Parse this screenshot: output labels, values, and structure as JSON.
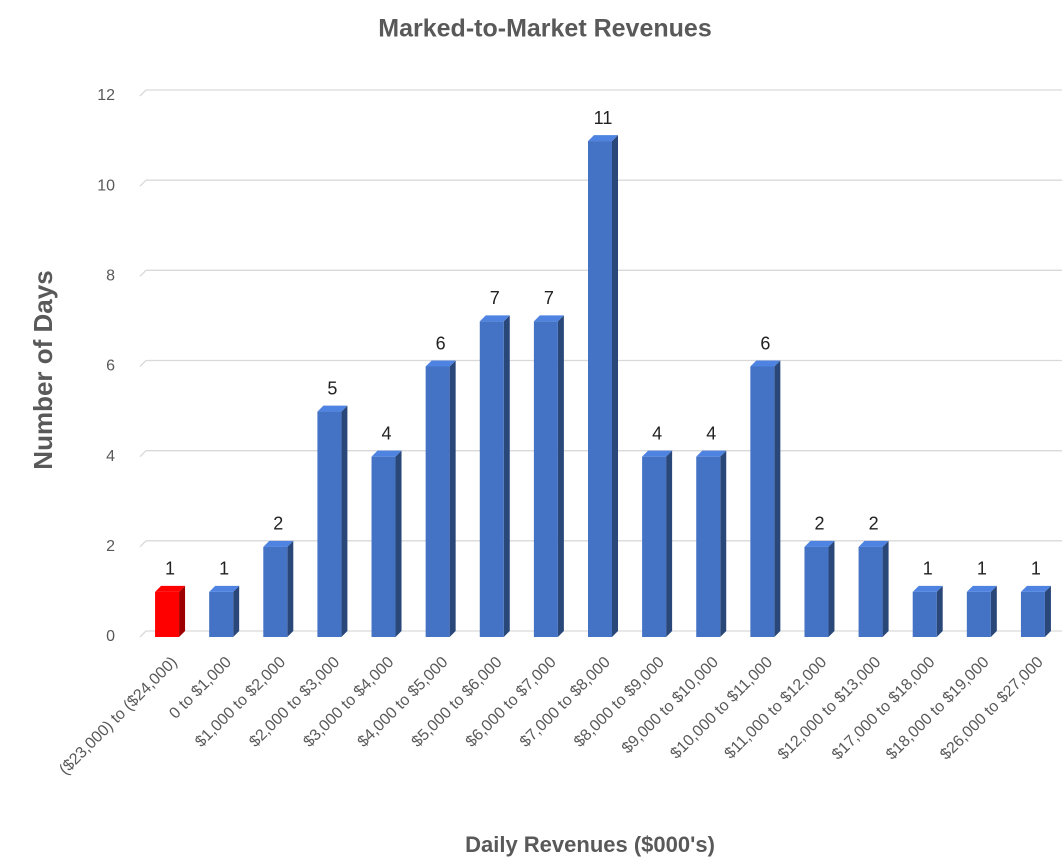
{
  "chart_data": {
    "type": "bar",
    "title": "Marked-to-Market Revenues",
    "x_label": "Daily Revenues ($000's)",
    "y_label": "Number of Days",
    "categories": [
      "($23,000) to ($24,000)",
      "0 to $1,000",
      "$1,000 to $2,000",
      "$2,000 to $3,000",
      "$3,000 to $4,000",
      "$4,000 to $5,000",
      "$5,000 to $6,000",
      "$6,000 to $7,000",
      "$7,000 to $8,000",
      "$8,000 to $9,000",
      "$9,000 to $10,000",
      "$10,000 to $11,000",
      "$11,000 to $12,000",
      "$12,000 to $13,000",
      "$17,000 to $18,000",
      "$18,000 to $19,000",
      "$26,000 to $27,000"
    ],
    "values": [
      1,
      1,
      2,
      5,
      4,
      6,
      7,
      7,
      11,
      4,
      4,
      6,
      2,
      2,
      1,
      1,
      1
    ],
    "colors": [
      "#ff0000",
      "#4472c4",
      "#4472c4",
      "#4472c4",
      "#4472c4",
      "#4472c4",
      "#4472c4",
      "#4472c4",
      "#4472c4",
      "#4472c4",
      "#4472c4",
      "#4472c4",
      "#4472c4",
      "#4472c4",
      "#4472c4",
      "#4472c4",
      "#4472c4"
    ],
    "ylim": [
      0,
      12
    ],
    "yticks": [
      0,
      2,
      4,
      6,
      8,
      10,
      12
    ],
    "grid": true
  }
}
